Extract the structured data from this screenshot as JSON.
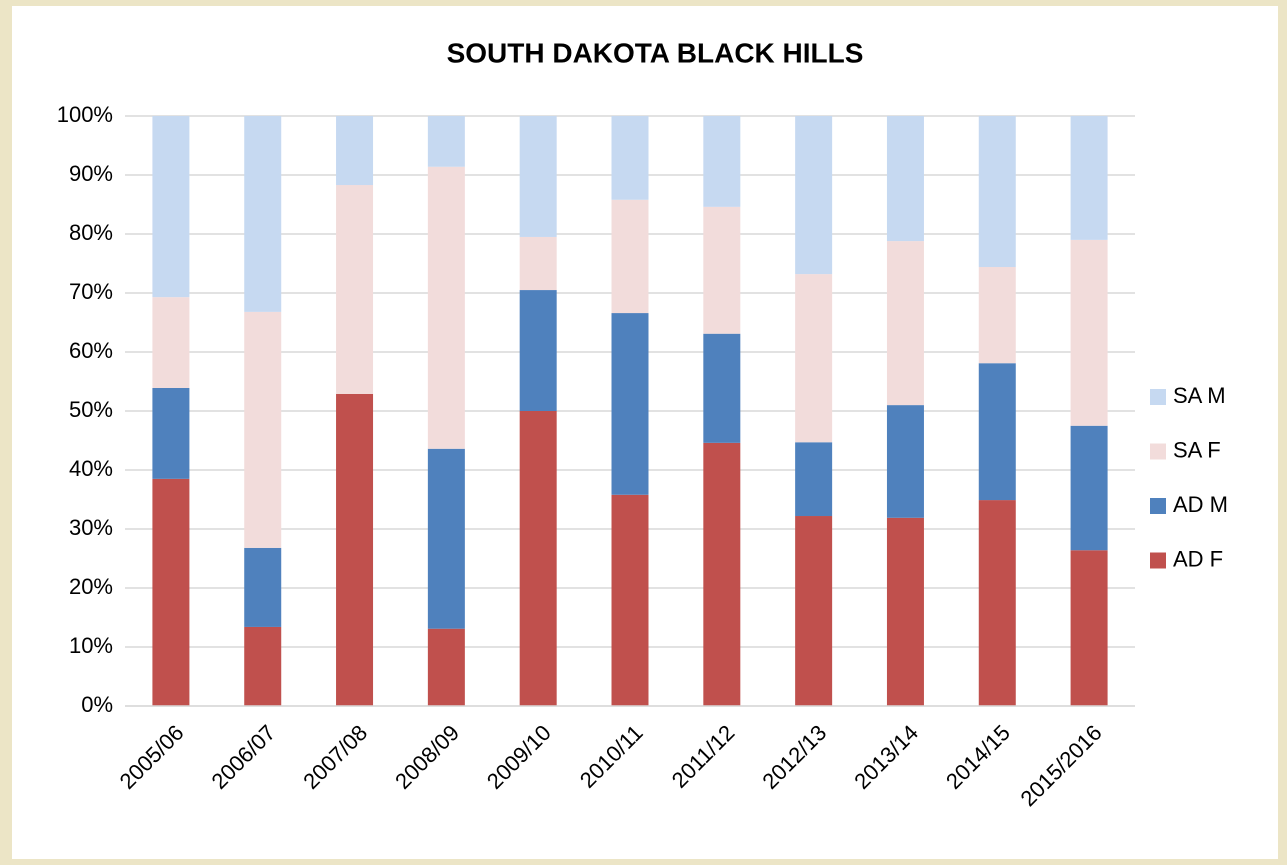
{
  "chart_data": {
    "type": "stacked_bar",
    "title": "SOUTH DAKOTA BLACK HILLS",
    "categories": [
      "2005/06",
      "2006/07",
      "2007/08",
      "2008/09",
      "2009/10",
      "2010/11",
      "2011/12",
      "2012/13",
      "2013/14",
      "2014/15",
      "2015/2016"
    ],
    "series": [
      {
        "name": "AD F",
        "color": "#c0504d",
        "values": [
          38.5,
          13.4,
          52.9,
          13.1,
          50,
          35.8,
          44.6,
          32.2,
          31.9,
          34.9,
          26.4
        ]
      },
      {
        "name": "AD M",
        "color": "#4f81bd",
        "values": [
          15.4,
          13.4,
          0,
          30.5,
          20.5,
          30.8,
          18.5,
          12.5,
          19.1,
          23.2,
          21.1
        ]
      },
      {
        "name": "SA F",
        "color": "#f2dcdb",
        "values": [
          15.4,
          40,
          35.4,
          47.8,
          9,
          19.2,
          21.5,
          28.5,
          27.8,
          16.3,
          31.5
        ]
      },
      {
        "name": "SA M",
        "color": "#c6d9f1",
        "values": [
          30.7,
          33.2,
          11.7,
          8.6,
          20.5,
          14.2,
          15.4,
          26.8,
          21.2,
          25.6,
          21
        ]
      }
    ],
    "ylim": [
      0,
      100
    ],
    "yticks": [
      {
        "value": 0,
        "label": "0%"
      },
      {
        "value": 10,
        "label": "10%"
      },
      {
        "value": 20,
        "label": "20%"
      },
      {
        "value": 30,
        "label": "30%"
      },
      {
        "value": 40,
        "label": "40%"
      },
      {
        "value": 50,
        "label": "50%"
      },
      {
        "value": 60,
        "label": "60%"
      },
      {
        "value": 70,
        "label": "70%"
      },
      {
        "value": 80,
        "label": "80%"
      },
      {
        "value": 90,
        "label": "90%"
      },
      {
        "value": 100,
        "label": "100%"
      }
    ],
    "grid": true,
    "legend": "right"
  }
}
